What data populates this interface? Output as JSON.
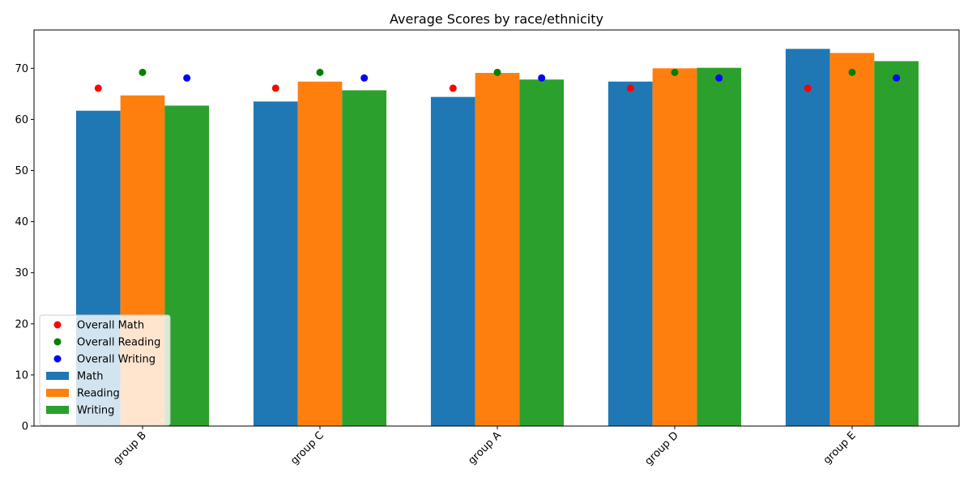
{
  "chart_data": {
    "type": "bar",
    "title": "Average Scores by race/ethnicity",
    "xlabel": "",
    "ylabel": "",
    "categories": [
      "group B",
      "group C",
      "group A",
      "group D",
      "group E"
    ],
    "ylim": [
      0,
      77.5
    ],
    "yticks": [
      0,
      10,
      20,
      30,
      40,
      50,
      60,
      70
    ],
    "grid": false,
    "legend_position": "lower-left",
    "series": [
      {
        "name": "Math",
        "color": "#1f77b4",
        "values": [
          61.7,
          63.5,
          64.4,
          67.4,
          73.8
        ]
      },
      {
        "name": "Reading",
        "color": "#ff7f0e",
        "values": [
          64.7,
          67.4,
          69.1,
          70.0,
          73.0
        ]
      },
      {
        "name": "Writing",
        "color": "#2ca02c",
        "values": [
          62.7,
          65.7,
          67.8,
          70.1,
          71.4
        ]
      }
    ],
    "overall": [
      {
        "name": "Overall Math",
        "color": "#ff0000",
        "value": 66.1
      },
      {
        "name": "Overall Reading",
        "color": "#008000",
        "value": 69.2
      },
      {
        "name": "Overall Writing",
        "color": "#0000ff",
        "value": 68.1
      }
    ]
  }
}
